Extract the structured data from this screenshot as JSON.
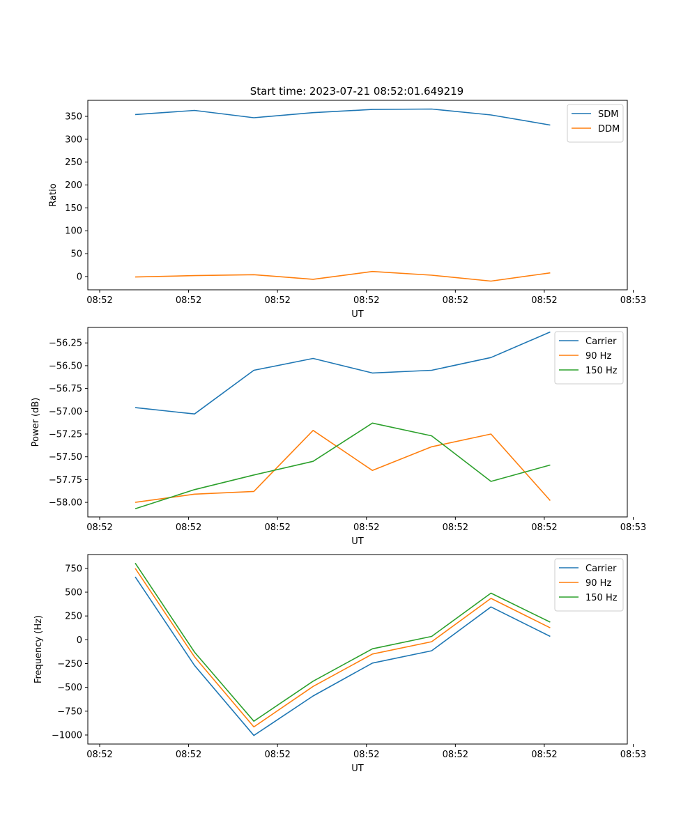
{
  "figure": {
    "title": "Start time: 2023-07-21 08:52:01.649219"
  },
  "colors": {
    "blue": "#1f77b4",
    "orange": "#ff7f0e",
    "green": "#2ca02c"
  },
  "chart_data": [
    {
      "type": "line",
      "title": "Start time: 2023-07-21 08:52:01.649219",
      "xlabel": "UT",
      "ylabel": "Ratio",
      "x": [
        1,
        2,
        3,
        4,
        5,
        6,
        7,
        8
      ],
      "xlim": [
        0.2,
        9.3
      ],
      "xticks": [
        0.4,
        1.9,
        3.4,
        4.9,
        6.4,
        7.9,
        9.4
      ],
      "xtick_labels": [
        "08:52",
        "08:52",
        "08:52",
        "08:52",
        "08:52",
        "08:52",
        "08:53"
      ],
      "ylim": [
        -29,
        385
      ],
      "yticks": [
        0,
        50,
        100,
        150,
        200,
        250,
        300,
        350
      ],
      "ytick_labels": [
        "0",
        "50",
        "100",
        "150",
        "200",
        "250",
        "300",
        "350"
      ],
      "legend": "top-right",
      "series": [
        {
          "name": "SDM",
          "color": "#1f77b4",
          "values": [
            354,
            363,
            347,
            358,
            365,
            366,
            353,
            331
          ]
        },
        {
          "name": "DDM",
          "color": "#ff7f0e",
          "values": [
            -1,
            2,
            4,
            -6,
            11,
            3,
            -10,
            8
          ]
        }
      ]
    },
    {
      "type": "line",
      "xlabel": "UT",
      "ylabel": "Power (dB)",
      "x": [
        1,
        2,
        3,
        4,
        5,
        6,
        7,
        8
      ],
      "xlim": [
        0.2,
        9.3
      ],
      "xticks": [
        0.4,
        1.9,
        3.4,
        4.9,
        6.4,
        7.9,
        9.4
      ],
      "xtick_labels": [
        "08:52",
        "08:52",
        "08:52",
        "08:52",
        "08:52",
        "08:52",
        "08:53"
      ],
      "ylim": [
        -58.16,
        -56.08
      ],
      "yticks": [
        -58.0,
        -57.75,
        -57.5,
        -57.25,
        -57.0,
        -56.75,
        -56.5,
        -56.25
      ],
      "ytick_labels": [
        "−58.00",
        "−57.75",
        "−57.50",
        "−57.25",
        "−57.00",
        "−56.75",
        "−56.50",
        "−56.25"
      ],
      "legend": "top-right",
      "series": [
        {
          "name": "Carrier",
          "color": "#1f77b4",
          "values": [
            -56.96,
            -57.03,
            -56.55,
            -56.42,
            -56.58,
            -56.55,
            -56.41,
            -56.13
          ]
        },
        {
          "name": "90 Hz",
          "color": "#ff7f0e",
          "values": [
            -58.0,
            -57.91,
            -57.88,
            -57.21,
            -57.65,
            -57.39,
            -57.25,
            -57.98
          ]
        },
        {
          "name": "150 Hz",
          "color": "#2ca02c",
          "values": [
            -58.07,
            -57.86,
            -57.7,
            -57.55,
            -57.13,
            -57.27,
            -57.77,
            -57.59
          ]
        }
      ]
    },
    {
      "type": "line",
      "xlabel": "UT",
      "ylabel": "Frequency (Hz)",
      "x": [
        1,
        2,
        3,
        4,
        5,
        6,
        7,
        8
      ],
      "xlim": [
        0.2,
        9.3
      ],
      "xticks": [
        0.4,
        1.9,
        3.4,
        4.9,
        6.4,
        7.9,
        9.4
      ],
      "xtick_labels": [
        "08:52",
        "08:52",
        "08:52",
        "08:52",
        "08:52",
        "08:52",
        "08:53"
      ],
      "ylim": [
        -1095,
        895
      ],
      "yticks": [
        -1000,
        -750,
        -500,
        -250,
        0,
        250,
        500,
        750
      ],
      "ytick_labels": [
        "−1000",
        "−750",
        "−500",
        "−250",
        "0",
        "250",
        "500",
        "750"
      ],
      "legend": "top-right",
      "series": [
        {
          "name": "Carrier",
          "color": "#1f77b4",
          "values": [
            660,
            -270,
            -1005,
            -590,
            -245,
            -115,
            345,
            35
          ]
        },
        {
          "name": "90 Hz",
          "color": "#ff7f0e",
          "values": [
            750,
            -180,
            -915,
            -490,
            -150,
            -20,
            435,
            125
          ]
        },
        {
          "name": "150 Hz",
          "color": "#2ca02c",
          "values": [
            805,
            -130,
            -855,
            -435,
            -95,
            35,
            490,
            185
          ]
        }
      ]
    }
  ]
}
